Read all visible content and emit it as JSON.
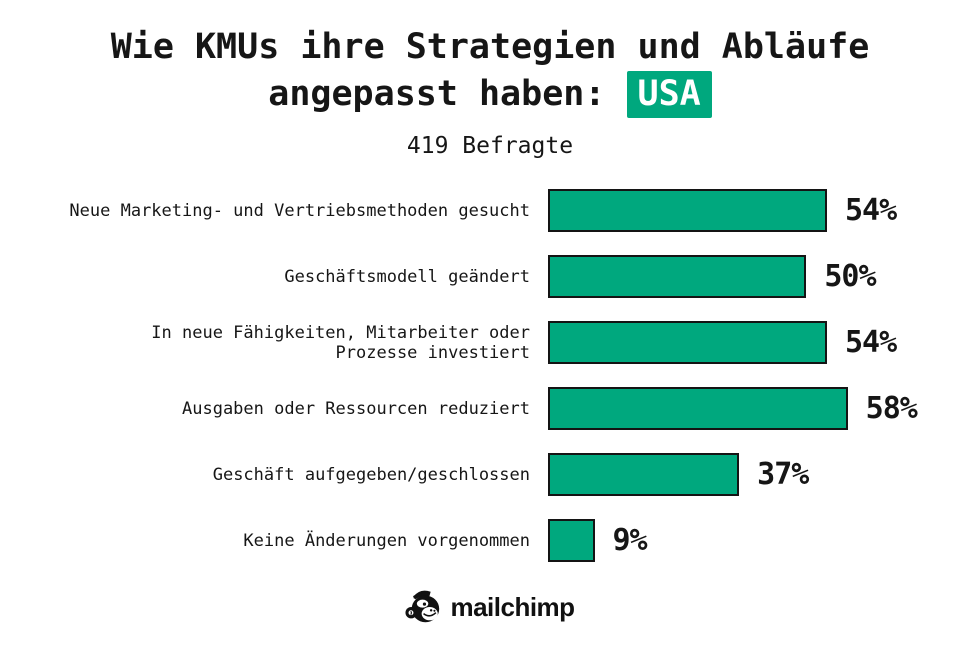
{
  "page": {
    "title_line1": "Wie KMUs ihre Strategien und Abläufe",
    "title_line2_prefix": "angepasst haben:",
    "title_badge": "USA",
    "subtitle": "419 Befragte"
  },
  "chart_data": {
    "type": "bar",
    "orientation": "horizontal",
    "title": "Wie KMUs ihre Strategien und Abläufe angepasst haben: USA",
    "subtitle": "419 Befragte",
    "categories": [
      "Neue Marketing- und Vertriebsmethoden gesucht",
      "Geschäftsmodell geändert",
      "In neue Fähigkeiten, Mitarbeiter oder\nProzesse investiert",
      "Ausgaben oder Ressourcen reduziert",
      "Geschäft aufgegeben/geschlossen",
      "Keine Änderungen vorgenommen"
    ],
    "values": [
      54,
      50,
      54,
      58,
      37,
      9
    ],
    "unit": "%",
    "xlim": [
      0,
      60
    ],
    "grid": false,
    "legend": false,
    "value_labels": "end-of-bar",
    "bar_color": "#00a87e",
    "bar_border_color": "#141414"
  },
  "footer": {
    "brand": "mailchimp",
    "icon": "mailchimp-freddie-icon"
  },
  "colors": {
    "accent_green": "#00a87e",
    "badge_text": "#ffffff",
    "text": "#161616",
    "background": "#ffffff"
  }
}
